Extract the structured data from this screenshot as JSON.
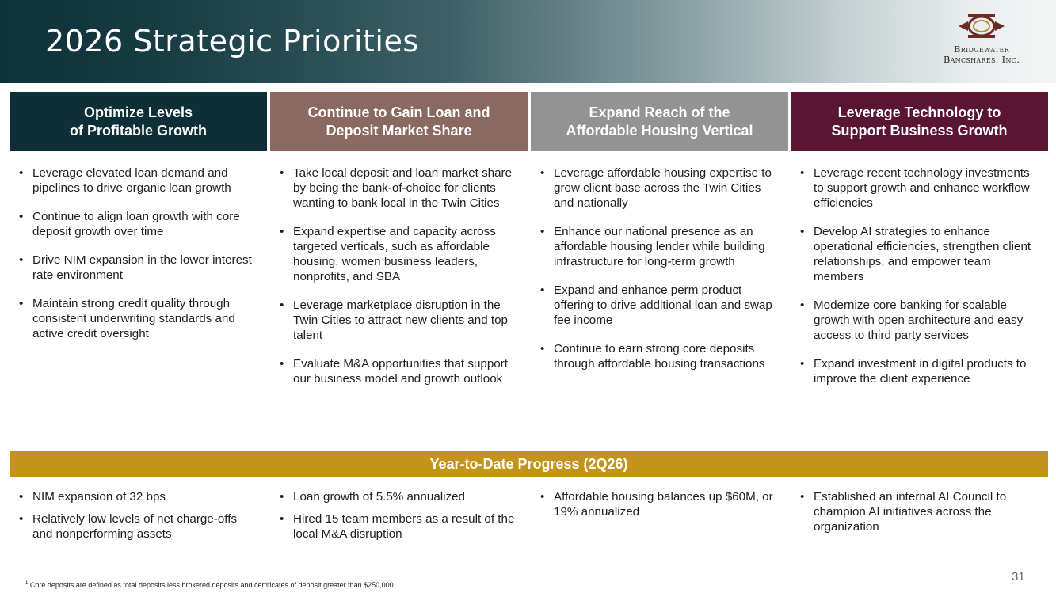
{
  "header": {
    "title": "2026 Strategic Priorities",
    "logo_line1": "Bridgewater",
    "logo_line2": "Bancshares, Inc."
  },
  "colors": {
    "col1": "#0e2f37",
    "col2": "#8a6a60",
    "col3": "#939393",
    "col4": "#5a1533",
    "progress": "#c39419"
  },
  "columns": [
    {
      "heading": "Optimize Levels\nof Profitable Growth",
      "bullets": [
        "Leverage elevated loan demand and pipelines to drive organic loan growth",
        "Continue to align loan growth with core deposit growth over time",
        "Drive NIM expansion in the lower interest rate environment",
        "Maintain strong credit quality through consistent underwriting standards and active credit oversight"
      ]
    },
    {
      "heading": "Continue to Gain Loan and\nDeposit Market Share",
      "bullets": [
        "Take local deposit and loan market share by being the bank-of-choice for clients wanting to bank local in the Twin Cities",
        "Expand expertise and capacity across targeted verticals, such as affordable housing, women business leaders, nonprofits, and SBA",
        "Leverage marketplace disruption in the Twin Cities to attract new clients and top talent",
        "Evaluate M&A opportunities that support our business model and growth outlook"
      ]
    },
    {
      "heading": "Expand Reach of the\nAffordable Housing Vertical",
      "bullets": [
        "Leverage affordable housing expertise to grow client base across the Twin Cities and nationally",
        "Enhance our national presence as an affordable housing lender while building infrastructure for long-term growth",
        "Expand and enhance perm product offering to drive additional loan and swap fee income",
        "Continue to earn strong core deposits through affordable housing transactions"
      ]
    },
    {
      "heading": "Leverage Technology to\nSupport Business Growth",
      "bullets": [
        "Leverage recent technology investments to support growth and enhance workflow efficiencies",
        "Develop AI strategies to enhance operational efficiencies, strengthen client relationships, and empower team members",
        "Modernize core banking for scalable growth with open architecture and easy access to third party services",
        "Expand investment in digital products to improve the client experience"
      ]
    }
  ],
  "progress": {
    "heading": "Year-to-Date Progress (2Q26)",
    "columns": [
      [
        "NIM expansion of 32 bps",
        "Relatively low levels of net charge-offs and nonperforming assets"
      ],
      [
        "Loan growth of 5.5% annualized",
        "Hired 15 team members as a result of the local M&A disruption"
      ],
      [
        "Affordable housing balances up $60M, or 19% annualized"
      ],
      [
        "Established an internal AI Council to champion AI initiatives across the organization"
      ]
    ]
  },
  "footnote": {
    "marker": "1",
    "text": "Core deposits are defined as total deposits less brokered deposits and certificates of deposit greater than $250,000"
  },
  "page_number": "31"
}
